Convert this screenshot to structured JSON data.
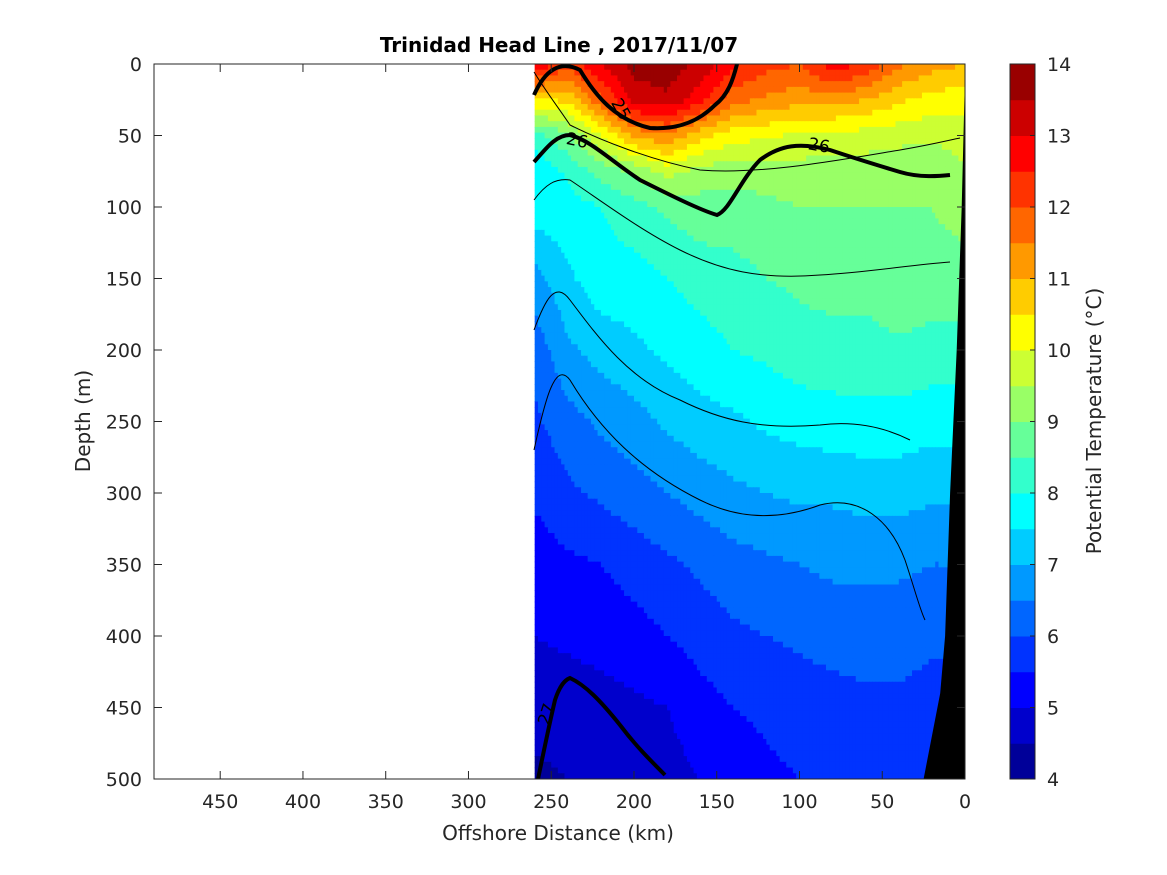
{
  "chart_data": {
    "type": "contour",
    "title": "Trinidad Head Line , 2017/11/07",
    "xlabel": "Offshore Distance (km)",
    "ylabel": "Depth (m)",
    "xlim": [
      490,
      0
    ],
    "ylim": [
      0,
      500
    ],
    "x_reversed": true,
    "y_reversed": true,
    "xticks": [
      "450",
      "400",
      "350",
      "300",
      "250",
      "200",
      "150",
      "100",
      "50",
      "0"
    ],
    "yticks": [
      "0",
      "50",
      "100",
      "150",
      "200",
      "250",
      "300",
      "350",
      "400",
      "450",
      "500"
    ],
    "colorbar": {
      "label": "Potential Temperature (°C)",
      "range": [
        4,
        14
      ],
      "ticks": [
        "4",
        "5",
        "6",
        "7",
        "8",
        "9",
        "10",
        "11",
        "12",
        "13",
        "14"
      ],
      "colormap": "jet",
      "levels": 20
    },
    "data_extent_km": [
      260,
      0
    ],
    "contour_labels": [
      "25",
      "26",
      "26",
      "27"
    ],
    "x_km": [
      260,
      240,
      220,
      200,
      180,
      160,
      140,
      120,
      100,
      80,
      60,
      40,
      20,
      0
    ],
    "depth_m": [
      0,
      25,
      50,
      75,
      100,
      150,
      200,
      250,
      300,
      350,
      400,
      450,
      500
    ],
    "temperature": [
      [
        13.0,
        12.2,
        13.0,
        13.7,
        13.8,
        13.4,
        12.6,
        12.2,
        12.0,
        12.8,
        12.4,
        11.6,
        11.2,
        11.0
      ],
      [
        10.5,
        10.6,
        11.9,
        13.2,
        13.4,
        12.7,
        11.7,
        11.4,
        11.2,
        11.3,
        11.0,
        10.6,
        10.3,
        10.2
      ],
      [
        8.3,
        8.9,
        10.0,
        11.1,
        11.4,
        10.7,
        10.2,
        10.1,
        9.9,
        9.8,
        9.8,
        9.7,
        9.6,
        9.8
      ],
      [
        7.6,
        8.1,
        8.7,
        9.1,
        9.7,
        9.3,
        9.2,
        9.2,
        9.3,
        9.2,
        9.2,
        9.1,
        9.1,
        9.4
      ],
      [
        7.8,
        7.8,
        8.0,
        8.3,
        8.6,
        8.8,
        8.8,
        8.9,
        9.0,
        9.0,
        9.0,
        9.0,
        9.0,
        9.2
      ],
      [
        6.8,
        7.4,
        7.8,
        7.8,
        8.0,
        8.2,
        8.3,
        8.5,
        8.6,
        8.7,
        8.7,
        8.9,
        8.8,
        8.8
      ],
      [
        6.2,
        6.9,
        7.2,
        7.4,
        7.6,
        7.8,
        8.0,
        8.1,
        8.3,
        8.3,
        8.3,
        8.4,
        8.3,
        8.3
      ],
      [
        5.9,
        6.3,
        6.6,
        6.8,
        7.1,
        7.3,
        7.4,
        7.6,
        7.7,
        7.8,
        7.8,
        7.8,
        7.7,
        7.7
      ],
      [
        5.6,
        5.9,
        6.1,
        6.3,
        6.5,
        6.7,
        6.9,
        7.0,
        7.1,
        7.1,
        7.2,
        7.2,
        7.1,
        7.1
      ],
      [
        5.2,
        5.4,
        5.5,
        5.7,
        5.9,
        6.1,
        6.3,
        6.4,
        6.5,
        6.6,
        6.6,
        6.6,
        6.5,
        6.5
      ],
      [
        5.0,
        5.1,
        5.2,
        5.3,
        5.5,
        5.7,
        5.9,
        6.0,
        6.1,
        6.2,
        6.2,
        6.2,
        6.1,
        6.1
      ],
      [
        4.7,
        4.7,
        4.8,
        4.9,
        5.0,
        5.3,
        5.5,
        5.6,
        5.7,
        5.8,
        5.9,
        5.9,
        5.8,
        5.8
      ],
      [
        4.4,
        4.5,
        4.6,
        4.7,
        4.8,
        5.0,
        5.2,
        5.4,
        5.5,
        5.6,
        5.7,
        5.7,
        5.6,
        5.6
      ]
    ],
    "bathymetry": [
      [
        0,
        8
      ],
      [
        2,
        100
      ],
      [
        5,
        200
      ],
      [
        9,
        300
      ],
      [
        12,
        400
      ],
      [
        15,
        440
      ],
      [
        25,
        500
      ]
    ]
  }
}
